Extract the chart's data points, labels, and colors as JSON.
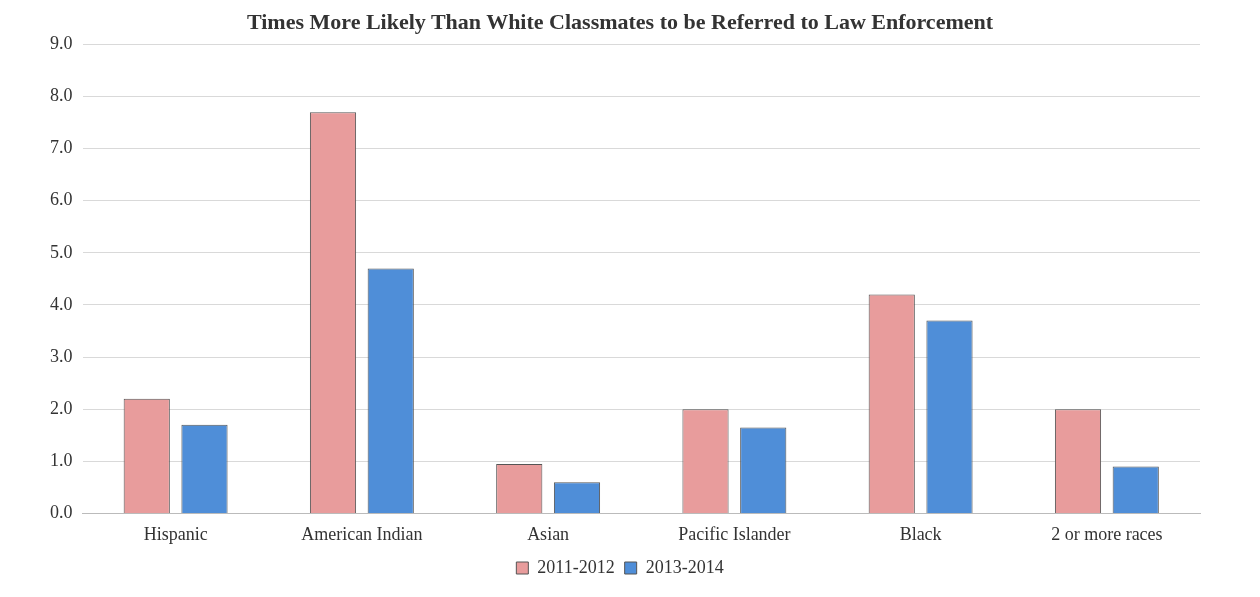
{
  "chart_data": {
    "type": "bar",
    "title": "Times More Likely Than White Classmates to be Referred to Law Enforcement",
    "categories": [
      "Hispanic",
      "American Indian",
      "Asian",
      "Pacific Islander",
      "Black",
      "2 or more races"
    ],
    "series": [
      {
        "name": "2011-2012",
        "color": "#e89c9c",
        "values": [
          2.2,
          7.7,
          0.95,
          2.0,
          4.2,
          2.0
        ]
      },
      {
        "name": "2013-2014",
        "color": "#4f8ed8",
        "values": [
          1.7,
          4.7,
          0.6,
          1.65,
          3.7,
          0.9
        ]
      }
    ],
    "ylim": [
      0,
      9
    ],
    "yticks": [
      {
        "value": 0,
        "label": "0.0"
      },
      {
        "value": 1,
        "label": "1.0"
      },
      {
        "value": 2,
        "label": "2.0"
      },
      {
        "value": 3,
        "label": "3.0"
      },
      {
        "value": 4,
        "label": "4.0"
      },
      {
        "value": 5,
        "label": "5.0"
      },
      {
        "value": 6,
        "label": "6.0"
      },
      {
        "value": 7,
        "label": "7.0"
      },
      {
        "value": 8,
        "label": "8.0"
      },
      {
        "value": 9,
        "label": "9.0"
      }
    ],
    "grid": "y",
    "legend": "bottom"
  }
}
